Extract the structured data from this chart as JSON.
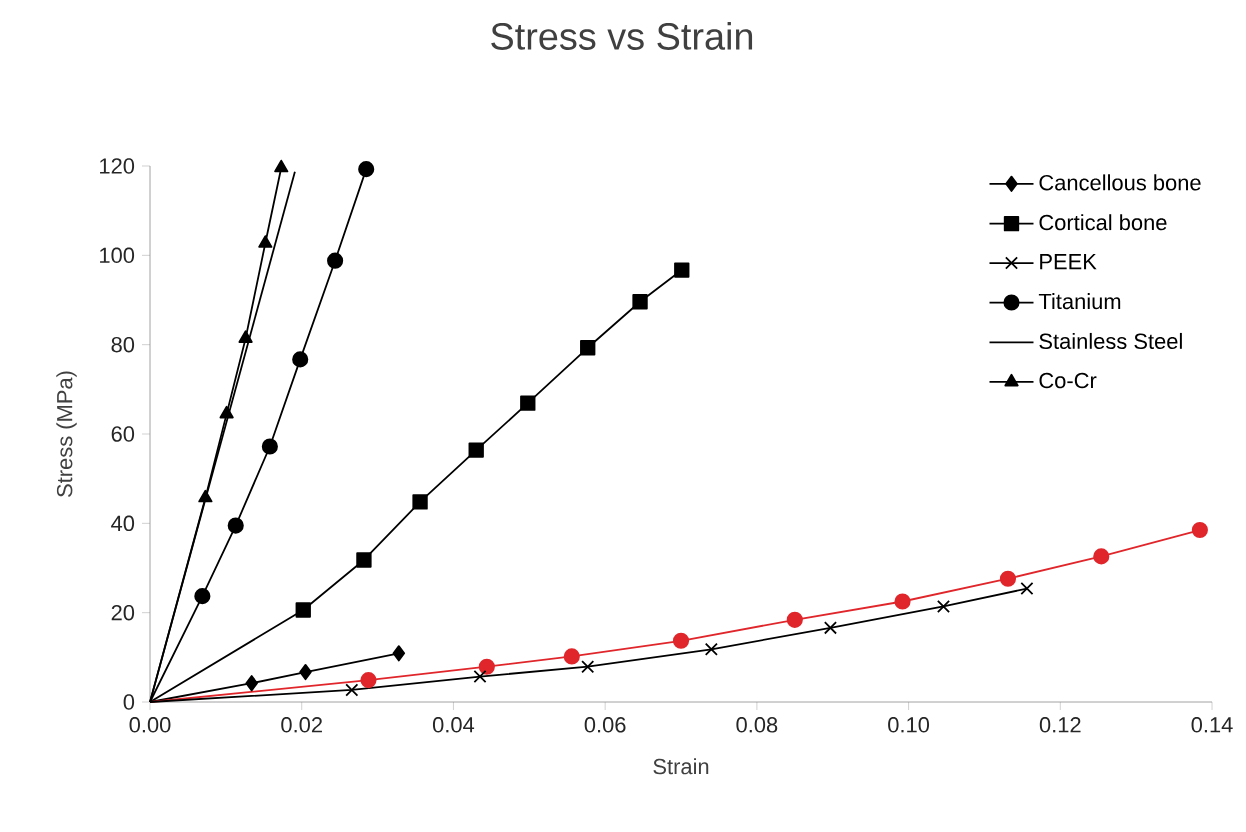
{
  "chart_data": {
    "type": "line",
    "title": "Stress vs Strain",
    "xlabel": "Strain",
    "ylabel": "Stress (MPa)",
    "xlim": [
      0,
      0.14
    ],
    "xticks": [
      {
        "value": 0,
        "label": "0.00"
      },
      {
        "value": 0.02,
        "label": "0.02"
      },
      {
        "value": 0.04,
        "label": "0.04"
      },
      {
        "value": 0.06,
        "label": "0.06"
      },
      {
        "value": 0.08,
        "label": "0.08"
      },
      {
        "value": 0.1,
        "label": "0.10"
      },
      {
        "value": 0.12,
        "label": "0.12"
      },
      {
        "value": 0.14,
        "label": "0.14"
      }
    ],
    "ylim": [
      0,
      120
    ],
    "yticks": [
      0,
      20,
      40,
      60,
      80,
      100,
      120
    ],
    "grid": false,
    "legend": "top right",
    "series": [
      {
        "name": "Cancellous bone",
        "color": "#000000",
        "marker": "diamond",
        "x": [
          0,
          0.0134,
          0.0205,
          0.0328
        ],
        "values": [
          0,
          4.2,
          6.7,
          10.9
        ]
      },
      {
        "name": "Cortical bone",
        "color": "#000000",
        "marker": "square",
        "x": [
          0,
          0.0202,
          0.0282,
          0.0356,
          0.043,
          0.0498,
          0.0577,
          0.0646,
          0.0701
        ],
        "values": [
          0,
          20.6,
          31.8,
          44.8,
          56.4,
          66.9,
          79.3,
          89.6,
          96.7
        ]
      },
      {
        "color": "#e0262b",
        "marker": "circle",
        "x": [
          0,
          0.0288,
          0.0444,
          0.0556,
          0.07,
          0.085,
          0.0992,
          0.1131,
          0.1254,
          0.1384
        ],
        "values": [
          0,
          4.9,
          7.9,
          10.2,
          13.7,
          18.4,
          22.5,
          27.6,
          32.6,
          38.5
        ]
      },
      {
        "name": "PEEK",
        "color": "#000000",
        "marker": "cross",
        "x": [
          0,
          0.0266,
          0.0435,
          0.0577,
          0.074,
          0.0897,
          0.1046,
          0.1156
        ],
        "values": [
          0,
          2.7,
          5.7,
          7.9,
          11.8,
          16.6,
          21.4,
          25.4
        ]
      },
      {
        "name": "Titanium",
        "color": "#000000",
        "marker": "circle",
        "x": [
          0,
          0.0069,
          0.0113,
          0.0158,
          0.0198,
          0.0244,
          0.0285
        ],
        "values": [
          0,
          23.7,
          39.5,
          57.2,
          76.7,
          98.8,
          119.3
        ]
      },
      {
        "name": "Stainless Steel",
        "color": "#000000",
        "marker": "none",
        "x": [
          0,
          0.0191
        ],
        "values": [
          0,
          118.7
        ]
      },
      {
        "name": "Co-Cr",
        "color": "#000000",
        "marker": "triangle",
        "x": [
          0,
          0.0073,
          0.0101,
          0.0126,
          0.0152,
          0.0173
        ],
        "values": [
          0,
          45.7,
          64.5,
          81.4,
          102.7,
          119.6
        ]
      }
    ]
  }
}
